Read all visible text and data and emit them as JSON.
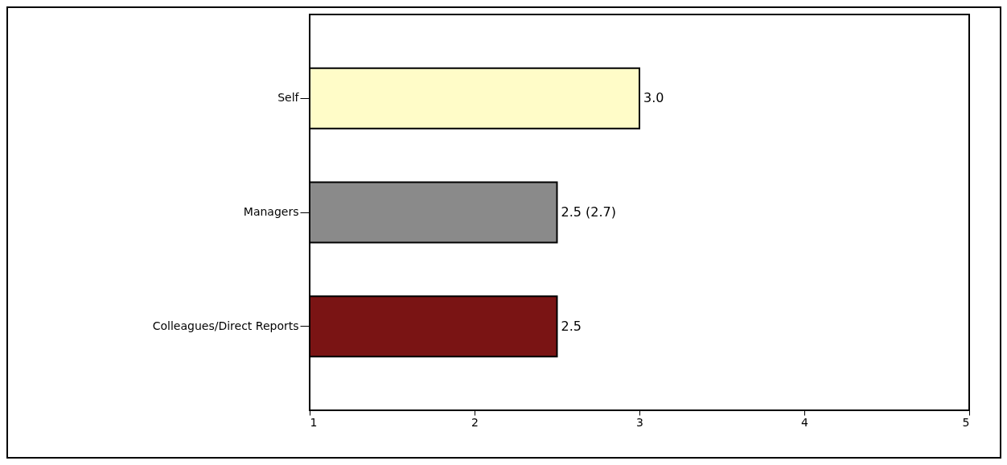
{
  "chart_data": {
    "type": "bar",
    "orientation": "horizontal",
    "categories": [
      "Self",
      "Managers",
      "Colleagues/Direct Reports"
    ],
    "values": [
      3.0,
      2.5,
      2.5
    ],
    "colors": [
      "#fffcc8",
      "#8a8a8a",
      "#7a1414"
    ],
    "value_labels": [
      "3.0",
      "2.5 (2.7)",
      "2.5"
    ],
    "xlim": [
      1,
      5
    ],
    "xticks": [
      1,
      2,
      3,
      4,
      5
    ],
    "grid": false
  }
}
